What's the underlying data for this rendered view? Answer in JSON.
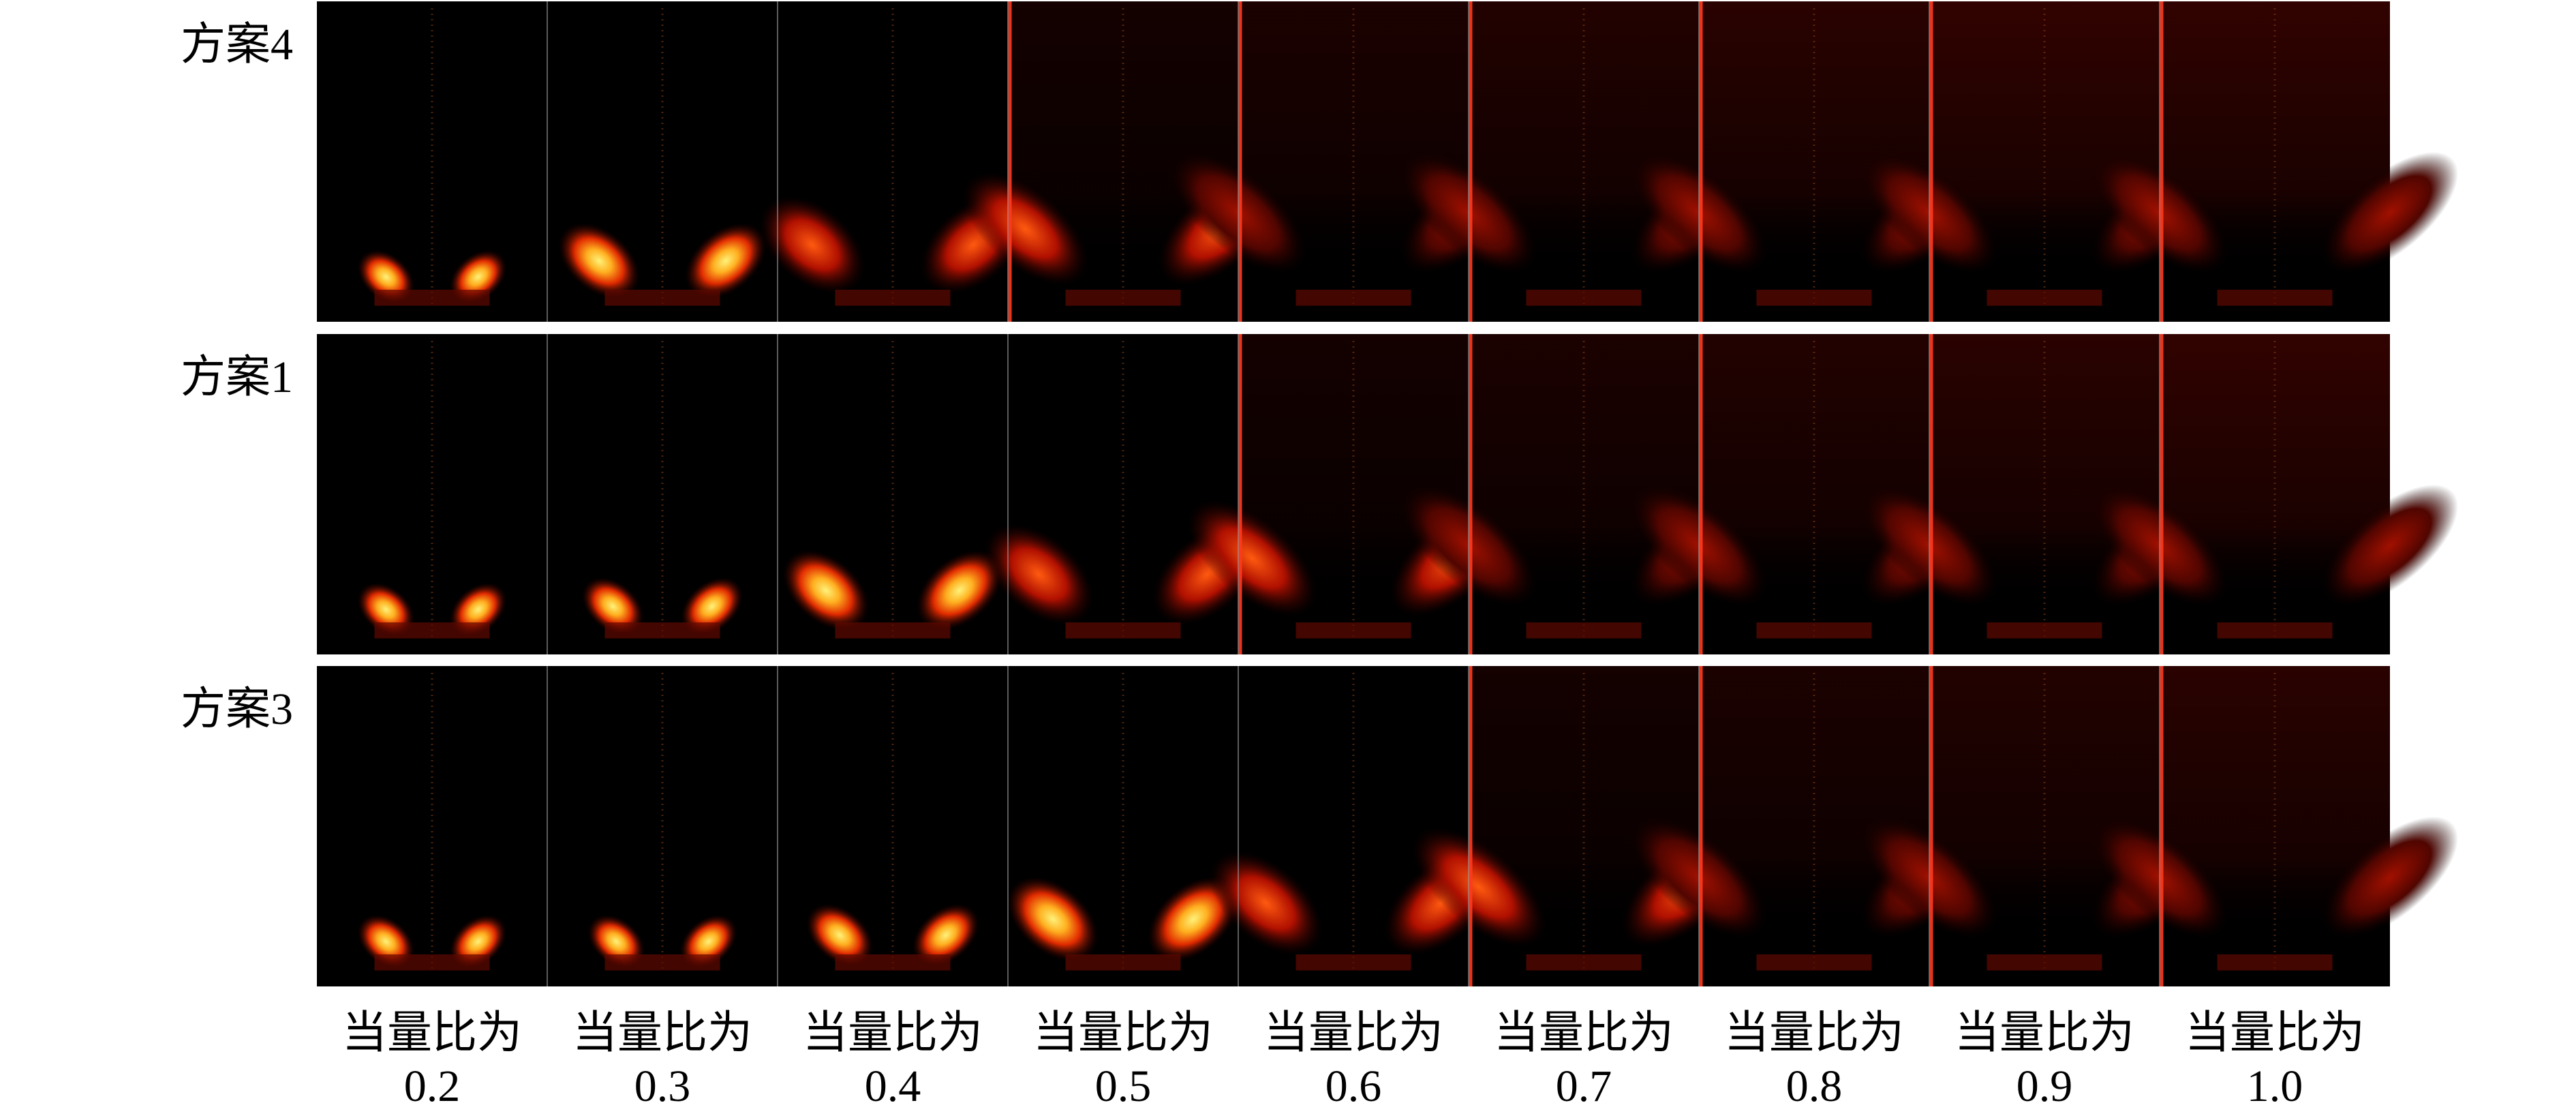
{
  "rows": [
    {
      "label": "方案4"
    },
    {
      "label": "方案1"
    },
    {
      "label": "方案3"
    }
  ],
  "columns": [
    {
      "label": "当量比为",
      "value": "0.2"
    },
    {
      "label": "当量比为",
      "value": "0.3"
    },
    {
      "label": "当量比为",
      "value": "0.4"
    },
    {
      "label": "当量比为",
      "value": "0.5"
    },
    {
      "label": "当量比为",
      "value": "0.6"
    },
    {
      "label": "当量比为",
      "value": "0.7"
    },
    {
      "label": "当量比为",
      "value": "0.8"
    },
    {
      "label": "当量比为",
      "value": "0.9"
    },
    {
      "label": "当量比为",
      "value": "1.0"
    }
  ]
}
